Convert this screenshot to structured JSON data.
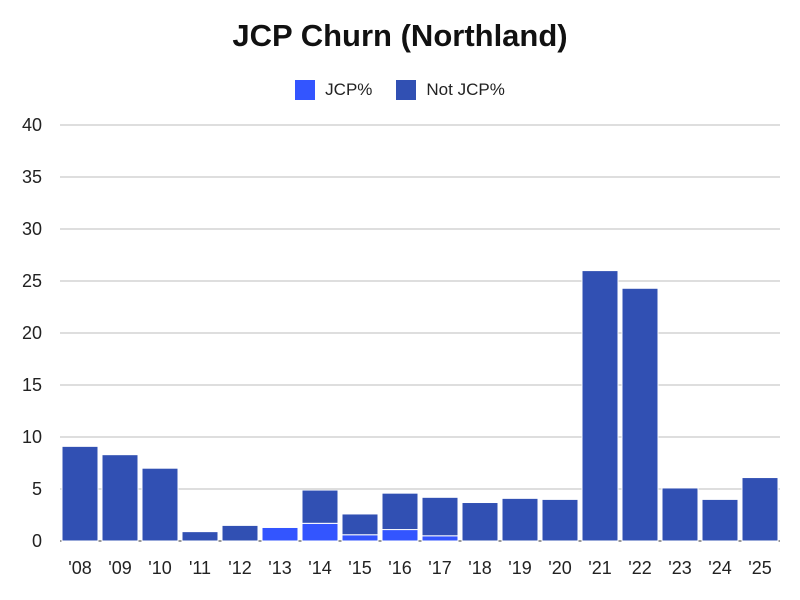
{
  "chart_data": {
    "type": "bar",
    "stacked": true,
    "title": "JCP Churn (Northland)",
    "xlabel": "",
    "ylabel": "",
    "categories": [
      "'08",
      "'09",
      "'10",
      "'11",
      "'12",
      "'13",
      "'14",
      "'15",
      "'16",
      "'17",
      "'18",
      "'19",
      "'20",
      "'21",
      "'22",
      "'23",
      "'24",
      "'25"
    ],
    "series": [
      {
        "name": "JCP%",
        "color": "#3355ff",
        "values": [
          0,
          0,
          0,
          0,
          0,
          1.3,
          1.7,
          0.6,
          1.1,
          0.5,
          0,
          0,
          0,
          0,
          0,
          0,
          0,
          0
        ]
      },
      {
        "name": "Not JCP%",
        "color": "#3150b3",
        "values": [
          9.1,
          8.3,
          7.0,
          0.9,
          1.5,
          0,
          3.2,
          2.0,
          3.5,
          3.7,
          3.7,
          4.1,
          4.0,
          26.0,
          24.3,
          5.1,
          4.0,
          6.1
        ]
      }
    ],
    "ylim": [
      0,
      40
    ],
    "yticks": [
      0,
      5,
      10,
      15,
      20,
      25,
      30,
      35,
      40
    ],
    "grid": true,
    "legend_position": "top-center"
  }
}
